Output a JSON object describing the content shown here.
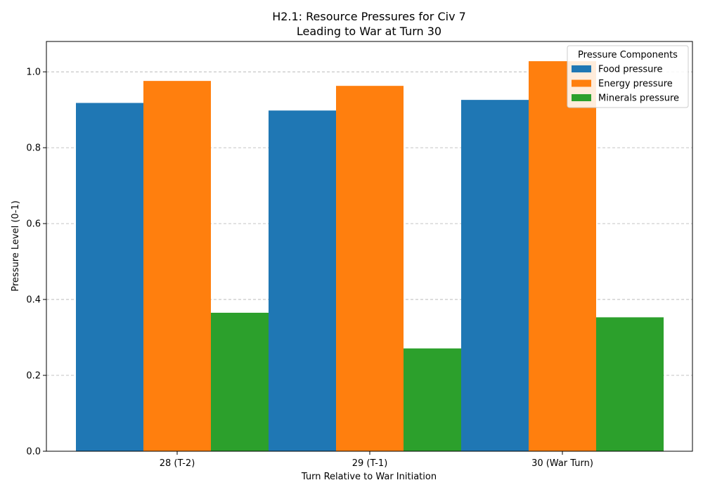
{
  "chart_data": {
    "type": "bar",
    "title_line1": "H2.1: Resource Pressures for Civ 7",
    "title_line2": "Leading to War at Turn 30",
    "xlabel": "Turn Relative to War Initiation",
    "ylabel": "Pressure Level (0-1)",
    "categories": [
      "28 (T-2)",
      "29 (T-1)",
      "30 (War Turn)"
    ],
    "ylim": [
      0,
      1.08
    ],
    "yticks": [
      "0.0",
      "0.2",
      "0.4",
      "0.6",
      "0.8",
      "1.0"
    ],
    "grid": "horizontal dashed",
    "legend": {
      "title": "Pressure Components",
      "placement": "top-right"
    },
    "series": [
      {
        "name": "Food pressure",
        "color": "#1f77b4",
        "values": [
          0.918,
          0.898,
          0.926
        ]
      },
      {
        "name": "Energy pressure",
        "color": "#ff7f0e",
        "values": [
          0.976,
          0.963,
          1.028
        ]
      },
      {
        "name": "Minerals pressure",
        "color": "#2ca02c",
        "values": [
          0.365,
          0.271,
          0.353
        ]
      }
    ]
  }
}
